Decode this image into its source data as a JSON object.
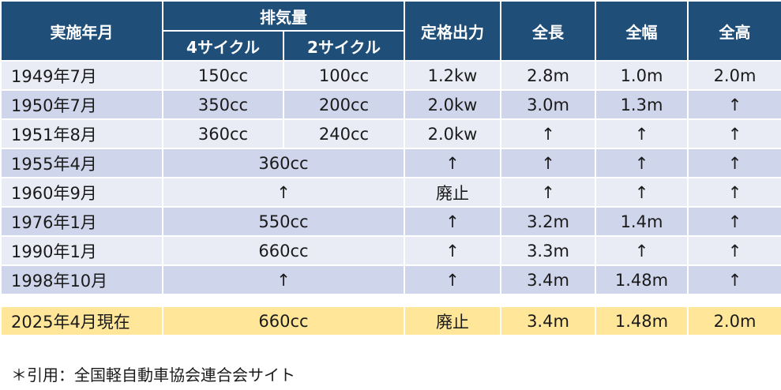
{
  "table": {
    "header": {
      "date": "実施年月",
      "displacement": "排気量",
      "four_stroke": "4サイクル",
      "two_stroke": "2サイクル",
      "power": "定格出力",
      "length": "全長",
      "width": "全幅",
      "height": "全高"
    },
    "rows": [
      [
        "1949年7月",
        "150cc",
        "100cc",
        "1.2kw",
        "2.8m",
        "1.0m",
        "2.0m"
      ],
      [
        "1950年7月",
        "350cc",
        "200cc",
        "2.0kw",
        "3.0m",
        "1.3m",
        "↑"
      ],
      [
        "1951年8月",
        "360cc",
        "240cc",
        "2.0kw",
        "↑",
        "↑",
        "↑"
      ],
      [
        "1955年4月",
        "360cc",
        "↑",
        "↑",
        "↑",
        "↑"
      ],
      [
        "1960年9月",
        "↑",
        "廃止",
        "↑",
        "↑",
        "↑"
      ],
      [
        "1976年1月",
        "550cc",
        "↑",
        "3.2m",
        "1.4m",
        "↑"
      ],
      [
        "1990年1月",
        "660cc",
        "↑",
        "3.3m",
        "↑",
        "↑"
      ],
      [
        "1998年10月",
        "↑",
        "↑",
        "3.4m",
        "1.48m",
        "↑"
      ]
    ],
    "current": [
      "2025年4月現在",
      "660cc",
      "廃止",
      "3.4m",
      "1.48m",
      "2.0m"
    ]
  },
  "footnote": "＊引用：全国軽自動車協会連合会サイト"
}
